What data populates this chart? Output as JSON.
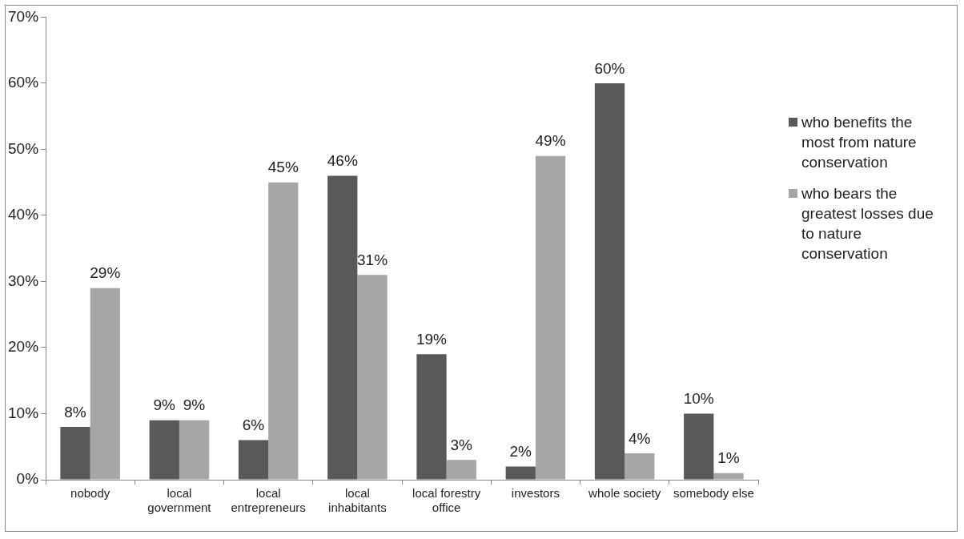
{
  "chart_data": {
    "type": "bar",
    "categories": [
      "nobody",
      "local government",
      "local entrepreneurs",
      "local inhabitants",
      "local forestry office",
      "investors",
      "whole society",
      "somebody else"
    ],
    "series": [
      {
        "name": "who benefits the most from nature conservation",
        "color": "#595959",
        "values": [
          8,
          9,
          6,
          46,
          19,
          2,
          60,
          10
        ],
        "value_labels": [
          "8%",
          "9%",
          "6%",
          "46%",
          "19%",
          "2%",
          "60%",
          "10%"
        ]
      },
      {
        "name": "who bears the greatest losses due to nature conservation",
        "color": "#a6a6a6",
        "values": [
          29,
          9,
          45,
          31,
          3,
          49,
          4,
          1
        ],
        "value_labels": [
          "29%",
          "9%",
          "45%",
          "31%",
          "3%",
          "49%",
          "4%",
          "1%"
        ]
      }
    ],
    "ylim": [
      0,
      70
    ],
    "yticks": [
      {
        "value": 0,
        "label": "0%"
      },
      {
        "value": 10,
        "label": "10%"
      },
      {
        "value": 20,
        "label": "20%"
      },
      {
        "value": 30,
        "label": "30%"
      },
      {
        "value": 40,
        "label": "40%"
      },
      {
        "value": 50,
        "label": "50%"
      },
      {
        "value": 60,
        "label": "60%"
      },
      {
        "value": 70,
        "label": "70%"
      }
    ],
    "grid": false,
    "legend": "right"
  }
}
